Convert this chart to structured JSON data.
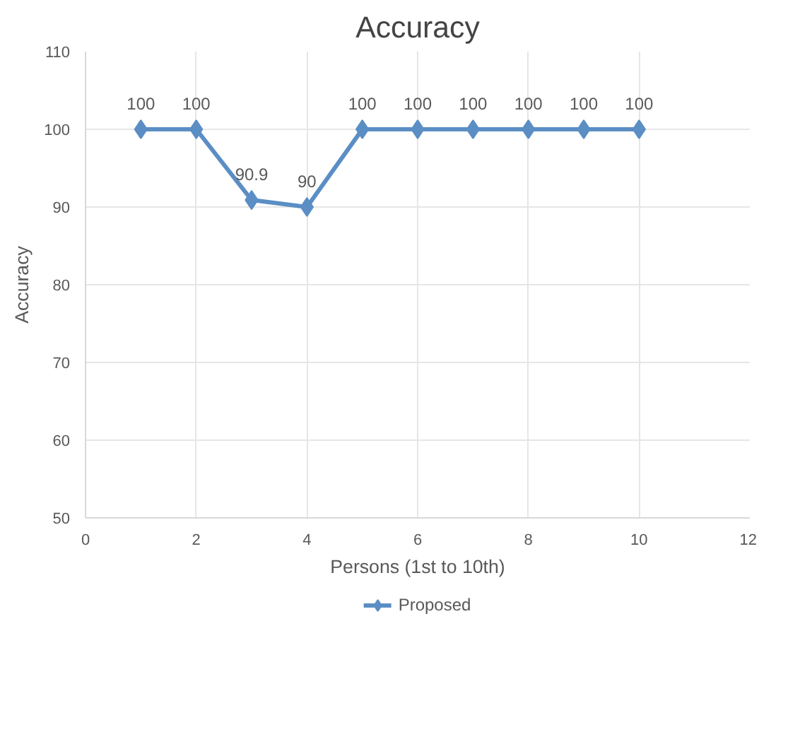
{
  "chart_data": {
    "type": "line",
    "title": "Accuracy",
    "xlabel": "Persons (1st to 10th)",
    "ylabel": "Accuracy",
    "x": [
      1,
      2,
      3,
      4,
      5,
      6,
      7,
      8,
      9,
      10
    ],
    "series": [
      {
        "name": "Proposed",
        "color": "#5b8ec4",
        "values": [
          100,
          100,
          90.9,
          90,
          100,
          100,
          100,
          100,
          100,
          100
        ]
      }
    ],
    "xlim": [
      0,
      12
    ],
    "xticks": [
      0,
      2,
      4,
      6,
      8,
      10,
      12
    ],
    "ylim": [
      50,
      110
    ],
    "yticks": [
      50,
      60,
      70,
      80,
      90,
      100,
      110
    ],
    "grid": true,
    "legend": "bottom",
    "marker": "diamond",
    "line_style": "solid",
    "data_labels": true
  }
}
